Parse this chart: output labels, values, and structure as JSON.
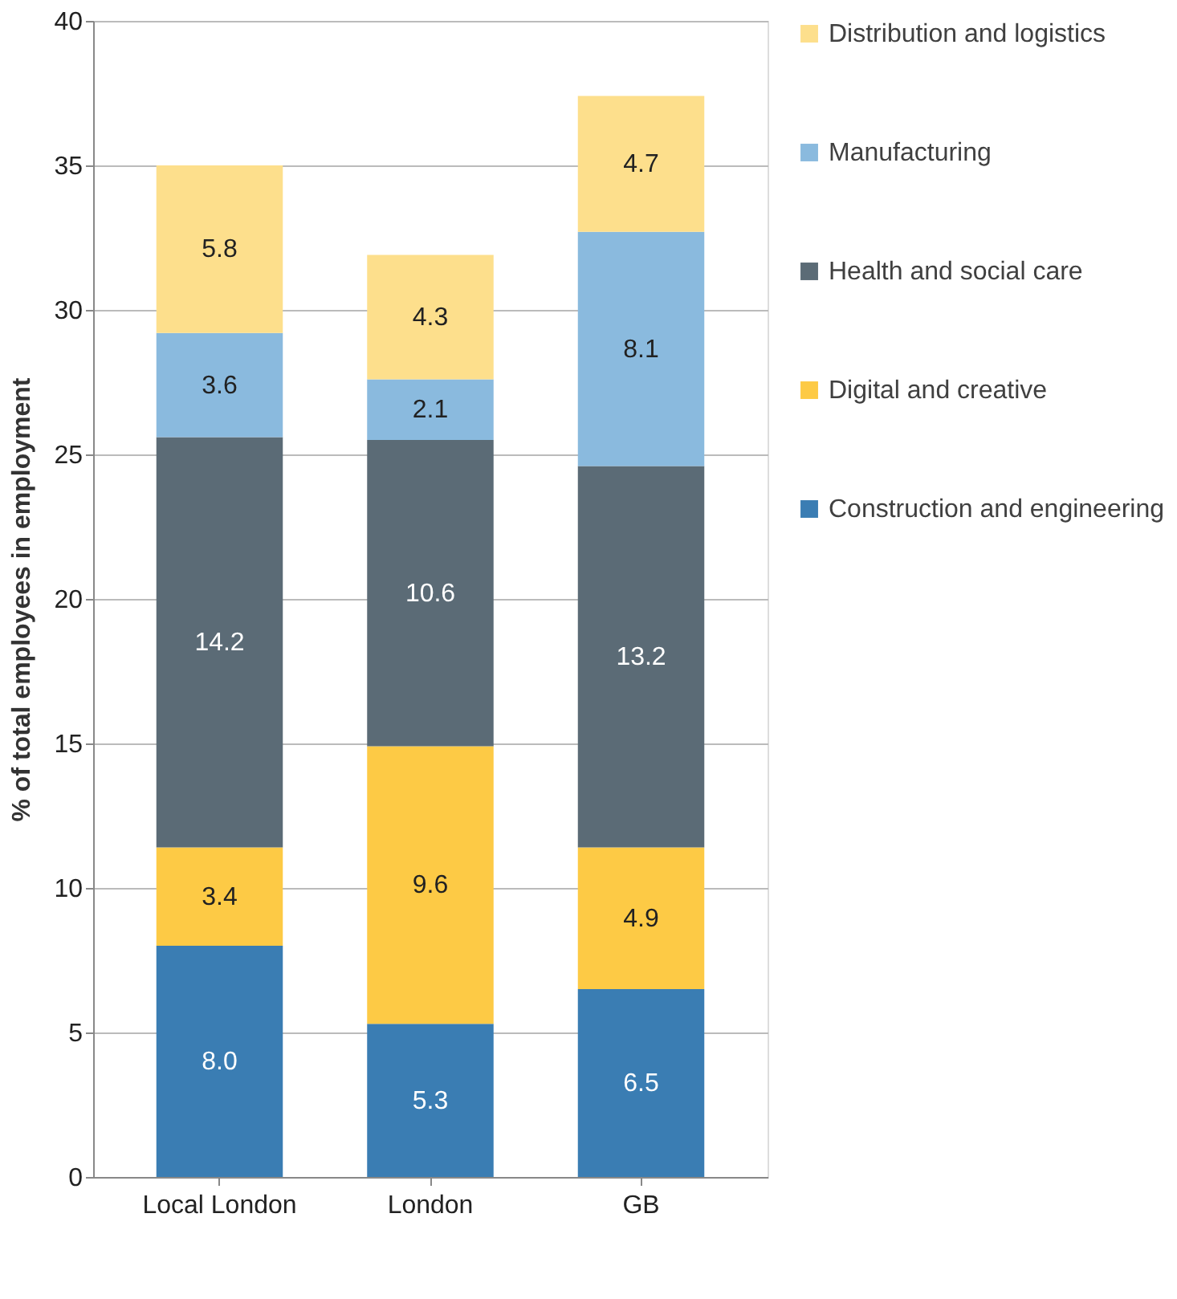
{
  "chart_data": {
    "type": "bar",
    "stacked": true,
    "ylabel": "% of total employees in employment",
    "categories": [
      "Local London",
      "London",
      "GB"
    ],
    "series": [
      {
        "name": "Construction and engineering",
        "color": "#3a7db3",
        "values": [
          8.0,
          5.3,
          6.5
        ],
        "value_labels": [
          "8.0",
          "5.3",
          "6.5"
        ]
      },
      {
        "name": "Digital and creative",
        "color": "#fdca45",
        "values": [
          3.4,
          9.6,
          4.9
        ],
        "value_labels": [
          "3.4",
          "9.6",
          "4.9"
        ]
      },
      {
        "name": "Health and social care",
        "color": "#5b6b76",
        "values": [
          14.2,
          10.6,
          13.2
        ],
        "value_labels": [
          "14.2",
          "10.6",
          "13.2"
        ]
      },
      {
        "name": "Manufacturing",
        "color": "#8abade",
        "values": [
          3.6,
          2.1,
          8.1
        ],
        "value_labels": [
          "3.6",
          "2.1",
          "8.1"
        ]
      },
      {
        "name": "Distribution and logistics",
        "color": "#fddf8c",
        "values": [
          5.8,
          4.3,
          4.7
        ],
        "value_labels": [
          "5.8",
          "4.3",
          "4.7"
        ]
      }
    ],
    "ylim": [
      0,
      40
    ],
    "yticks": [
      0,
      5,
      10,
      15,
      20,
      25,
      30,
      35,
      40
    ],
    "grid": "y",
    "legend": "right"
  }
}
